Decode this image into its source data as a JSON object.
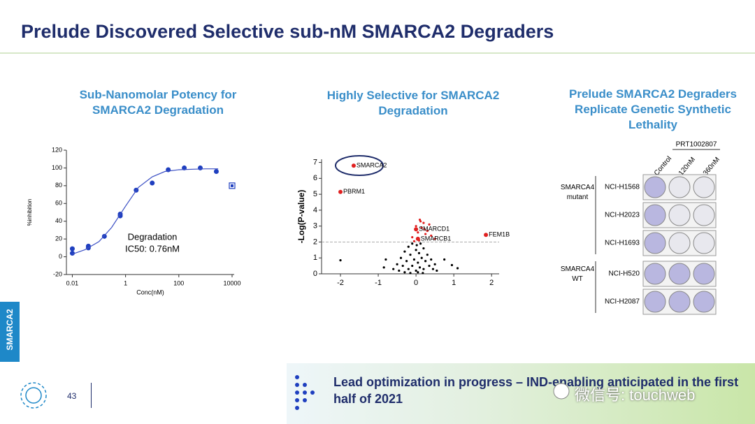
{
  "title": "Prelude Discovered Selective sub-nM SMARCA2 Degraders",
  "side_tab": "SMARCA2",
  "page_number": "43",
  "footer_text": "Lead optimization in progress – IND-enabling anticipated in the first half of 2021",
  "watermark": "微信号: touchweb",
  "chart_data": [
    {
      "type": "scatter",
      "title": "Sub-Nanomolar Potency for SMARCA2 Degradation",
      "x_label": "Conc(nM)",
      "y_label": "%inhibition",
      "annotations": [
        "Degradation",
        "IC50: 0.76nM"
      ],
      "xscale": "log",
      "xlim": [
        0.006,
        12000
      ],
      "xticks": [
        0.01,
        1,
        100,
        10000
      ],
      "ylim": [
        -20,
        120
      ],
      "yticks": [
        -20,
        0,
        20,
        40,
        60,
        80,
        100,
        120
      ],
      "series": [
        {
          "marker": "circle",
          "color": "#1f3fbf",
          "x": [
            0.01,
            0.01,
            0.04,
            0.04,
            0.16,
            0.63,
            0.63,
            2.5,
            10,
            40,
            160,
            640,
            2560
          ],
          "values": [
            4,
            9,
            10,
            12,
            23,
            46,
            48,
            75,
            83,
            98,
            100,
            100,
            96
          ]
        },
        {
          "marker": "square",
          "color": "#1f3fbf",
          "x": [
            10000
          ],
          "values": [
            80
          ]
        },
        {
          "marker": "line",
          "color": "#3b4fc4",
          "x": [
            0.01,
            0.03,
            0.1,
            0.3,
            1,
            3,
            10,
            30,
            100,
            1000,
            3000
          ],
          "values": [
            3,
            8,
            17,
            33,
            57,
            78,
            90,
            96,
            98,
            99,
            99
          ]
        }
      ]
    },
    {
      "type": "scatter",
      "title": "Highly Selective for SMARCA2 Degradation",
      "y_label": "-Log(P-value)",
      "xlim": [
        -2.5,
        2.2
      ],
      "xticks": [
        -2,
        -1,
        0,
        1,
        2
      ],
      "ylim": [
        0,
        7.2
      ],
      "yticks": [
        0,
        1,
        2,
        3,
        4,
        5,
        6,
        7
      ],
      "threshold": 2,
      "series": [
        {
          "marker": "dot",
          "color": "#000000",
          "x": [
            -2.0,
            -0.85,
            -0.8,
            -0.6,
            -0.5,
            -0.45,
            -0.4,
            -0.35,
            -0.3,
            -0.3,
            -0.25,
            -0.2,
            -0.2,
            -0.15,
            -0.1,
            -0.1,
            -0.05,
            0,
            0,
            0.02,
            0.05,
            0.08,
            0.1,
            0.12,
            0.15,
            0.2,
            0.2,
            0.25,
            0.3,
            0.35,
            0.4,
            0.45,
            0.5,
            0.55,
            0.75,
            0.95,
            1.1,
            -0.15,
            0.05,
            0.18
          ],
          "values": [
            0.85,
            0.4,
            0.9,
            0.3,
            0.6,
            0.2,
            1.0,
            0.5,
            0.1,
            1.4,
            0.8,
            0.3,
            1.7,
            1.2,
            0.5,
            1.9,
            0.9,
            0.2,
            1.5,
            1.8,
            0.7,
            1.3,
            0.4,
            1.9,
            1.0,
            0.3,
            1.6,
            0.8,
            1.2,
            0.5,
            0.9,
            0.3,
            0.6,
            0.2,
            0.9,
            0.55,
            0.35,
            0.05,
            0.1,
            0.05
          ]
        },
        {
          "marker": "dot",
          "color": "#e02020",
          "x": [
            -0.1,
            0,
            0.05,
            0.1,
            0.15,
            0.2,
            0.25,
            0.3,
            0.4,
            0.5,
            0.08,
            0.12,
            0.22,
            0.35,
            -0.05
          ],
          "values": [
            2.3,
            3.0,
            2.6,
            3.4,
            2.9,
            3.2,
            2.5,
            2.7,
            2.4,
            2.2,
            2.1,
            3.3,
            2.8,
            3.1,
            2.05
          ]
        },
        {
          "marker": "labeled",
          "color": "#e02020",
          "x": [
            -1.65,
            -2.0,
            0,
            0.05,
            1.85
          ],
          "values": [
            6.8,
            5.15,
            2.8,
            2.2,
            2.45
          ],
          "labels": [
            "SMARCA2",
            "PBRM1",
            "SMARCD1",
            "SMARCB1",
            "FEM1B"
          ]
        }
      ]
    }
  ],
  "panel3": {
    "title": "Prelude SMARCA2 Degraders Replicate Genetic Synthetic Lethality",
    "compound": "PRT1002807",
    "columns": [
      "Control",
      "120nM",
      "360nM"
    ],
    "groups": [
      "SMARCA4 mutant",
      "SMARCA4 WT"
    ],
    "rows": [
      "NCI-H1568",
      "NCI-H2023",
      "NCI-H1693",
      "NCI-H520",
      "NCI-H2087"
    ]
  }
}
